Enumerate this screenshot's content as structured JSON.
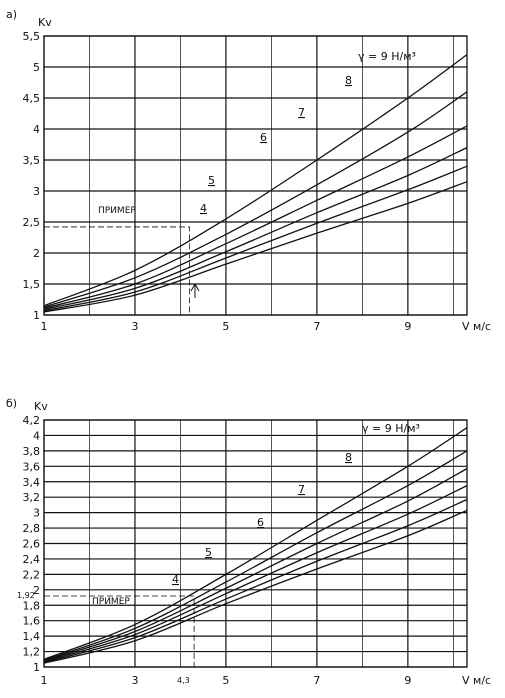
{
  "colors": {
    "ink": "#111111",
    "background": "#ffffff"
  },
  "chart_data": [
    {
      "type": "line",
      "panel_label": "а)",
      "ylabel": "Kv",
      "xlabel": "V м/с",
      "xlim": [
        1,
        10.3
      ],
      "ylim": [
        1,
        5.5
      ],
      "x_ticks": [
        "1",
        "3",
        "5",
        "7",
        "9"
      ],
      "y_ticks": [
        "1",
        "1,5",
        "2",
        "2,5",
        "3",
        "3,5",
        "4",
        "4,5",
        "5",
        "5,5"
      ],
      "grid": true,
      "gamma_label": "γ = 9 Н/м³",
      "curve_labels": [
        "4",
        "5",
        "6",
        "7",
        "8"
      ],
      "example_label": "ПРИМЕР",
      "example": {
        "x": 4.2,
        "y": 2.42
      },
      "series": [
        {
          "name": "9",
          "x": [
            1,
            3,
            5,
            7,
            9,
            10.3
          ],
          "y": [
            1.15,
            1.72,
            2.55,
            3.5,
            4.5,
            5.2
          ]
        },
        {
          "name": "8",
          "x": [
            1,
            3,
            5,
            7,
            9,
            10.3
          ],
          "y": [
            1.13,
            1.6,
            2.3,
            3.1,
            3.95,
            4.6
          ]
        },
        {
          "name": "7",
          "x": [
            1,
            3,
            5,
            7,
            9,
            10.3
          ],
          "y": [
            1.11,
            1.5,
            2.15,
            2.85,
            3.55,
            4.05
          ]
        },
        {
          "name": "6",
          "x": [
            1,
            3,
            5,
            7,
            9,
            10.3
          ],
          "y": [
            1.09,
            1.43,
            2.02,
            2.65,
            3.25,
            3.7
          ]
        },
        {
          "name": "5",
          "x": [
            1,
            3,
            5,
            7,
            9,
            10.3
          ],
          "y": [
            1.07,
            1.37,
            1.92,
            2.48,
            3.02,
            3.4
          ]
        },
        {
          "name": "4",
          "x": [
            1,
            3,
            5,
            7,
            9,
            10.3
          ],
          "y": [
            1.05,
            1.32,
            1.82,
            2.32,
            2.8,
            3.15
          ]
        }
      ]
    },
    {
      "type": "line",
      "panel_label": "б)",
      "ylabel": "Kv",
      "xlabel": "V м/с",
      "xlim": [
        1,
        10.3
      ],
      "ylim": [
        1,
        4.2
      ],
      "x_ticks": [
        "1",
        "3",
        "5",
        "7",
        "9"
      ],
      "x_extra_tick": "4,3",
      "y_ticks": [
        "1",
        "1,2",
        "1,4",
        "1,6",
        "1,8",
        "2",
        "2,2",
        "2,4",
        "2,6",
        "2,8",
        "3",
        "3,2",
        "3,4",
        "3,6",
        "3,8",
        "4",
        "4,2"
      ],
      "y_extra_tick": "1,92",
      "grid": true,
      "gamma_label": "γ = 9 Н/м³",
      "curve_labels": [
        "4",
        "5",
        "6",
        "7",
        "8"
      ],
      "example_label": "ПРИМЕР",
      "example": {
        "x": 4.3,
        "y": 1.92
      },
      "series": [
        {
          "name": "9",
          "x": [
            1,
            3,
            5,
            7,
            9,
            10.3
          ],
          "y": [
            1.1,
            1.55,
            2.2,
            2.9,
            3.6,
            4.1
          ]
        },
        {
          "name": "8",
          "x": [
            1,
            3,
            5,
            7,
            9,
            10.3
          ],
          "y": [
            1.09,
            1.5,
            2.1,
            2.74,
            3.35,
            3.8
          ]
        },
        {
          "name": "7",
          "x": [
            1,
            3,
            5,
            7,
            9,
            10.3
          ],
          "y": [
            1.08,
            1.46,
            2.02,
            2.6,
            3.15,
            3.57
          ]
        },
        {
          "name": "6",
          "x": [
            1,
            3,
            5,
            7,
            9,
            10.3
          ],
          "y": [
            1.07,
            1.42,
            1.95,
            2.48,
            2.98,
            3.35
          ]
        },
        {
          "name": "5",
          "x": [
            1,
            3,
            5,
            7,
            9,
            10.3
          ],
          "y": [
            1.06,
            1.38,
            1.88,
            2.37,
            2.83,
            3.17
          ]
        },
        {
          "name": "4",
          "x": [
            1,
            3,
            5,
            7,
            9,
            10.3
          ],
          "y": [
            1.05,
            1.34,
            1.82,
            2.27,
            2.7,
            3.03
          ]
        }
      ]
    }
  ]
}
